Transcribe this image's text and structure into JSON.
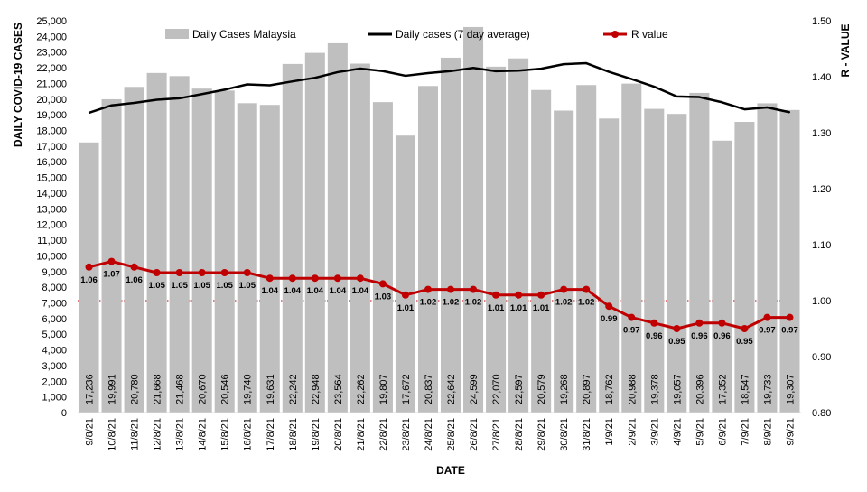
{
  "chart_data": {
    "type": "bar",
    "title": "",
    "xlabel": "DATE",
    "ylabel": "DAILY COVID-19 CASES",
    "y2label": "R - VALUE",
    "ylim": [
      0,
      25000
    ],
    "y2lim": [
      0.8,
      1.5
    ],
    "y_ticks": [
      "0",
      "1,000",
      "2,000",
      "3,000",
      "4,000",
      "5,000",
      "6,000",
      "7,000",
      "8,000",
      "9,000",
      "10,000",
      "11,000",
      "12,000",
      "13,000",
      "14,000",
      "15,000",
      "16,000",
      "17,000",
      "18,000",
      "19,000",
      "20,000",
      "21,000",
      "22,000",
      "23,000",
      "24,000",
      "25,000"
    ],
    "y2_ticks": [
      "0.80",
      "0.90",
      "1.00",
      "1.10",
      "1.20",
      "1.30",
      "1.40",
      "1.50"
    ],
    "categories": [
      "9/8/21",
      "10/8/21",
      "11/8/21",
      "12/8/21",
      "13/8/21",
      "14/8/21",
      "15/8/21",
      "16/8/21",
      "17/8/21",
      "18/8/21",
      "19/8/21",
      "20/8/21",
      "21/8/21",
      "22/8/21",
      "23/8/21",
      "24/8/21",
      "25/8/21",
      "26/8/21",
      "27/8/21",
      "28/8/21",
      "29/8/21",
      "30/8/21",
      "31/8/21",
      "1/9/21",
      "2/9/21",
      "3/9/21",
      "4/9/21",
      "5/9/21",
      "6/9/21",
      "7/9/21",
      "8/9/21",
      "9/9/21"
    ],
    "series": [
      {
        "name": "Daily Cases Malaysia",
        "kind": "bar",
        "axis": "left",
        "color": "#bfbfbf",
        "values": [
          17236,
          19991,
          20780,
          21668,
          21468,
          20670,
          20546,
          19740,
          19631,
          22242,
          22948,
          23564,
          22262,
          19807,
          17672,
          20837,
          22642,
          24599,
          22070,
          22597,
          20579,
          19268,
          20897,
          18762,
          20988,
          19378,
          19057,
          20396,
          17352,
          18547,
          19733,
          19307
        ],
        "value_labels": [
          "17,236",
          "19,991",
          "20,780",
          "21,668",
          "21,468",
          "20,670",
          "20,546",
          "19,740",
          "19,631",
          "22,242",
          "22,948",
          "23,564",
          "22,262",
          "19,807",
          "17,672",
          "20,837",
          "22,642",
          "24,599",
          "22,070",
          "22,597",
          "20,579",
          "19,268",
          "20,897",
          "18,762",
          "20,988",
          "19,378",
          "19,057",
          "20,396",
          "17,352",
          "18,547",
          "19,733",
          "19,307"
        ]
      },
      {
        "name": "Daily cases (7 day average)",
        "kind": "line",
        "axis": "left",
        "color": "#000000",
        "values": [
          19130,
          19600,
          19760,
          19960,
          20050,
          20320,
          20600,
          20940,
          20880,
          21130,
          21360,
          21720,
          21950,
          21790,
          21490,
          21660,
          21790,
          21990,
          21780,
          21820,
          21940,
          22230,
          22290,
          21740,
          21280,
          20790,
          20170,
          20130,
          19800,
          19350,
          19470,
          19160
        ]
      },
      {
        "name": "R value",
        "kind": "line",
        "axis": "right",
        "color": "#c00000",
        "values": [
          1.06,
          1.07,
          1.06,
          1.05,
          1.05,
          1.05,
          1.05,
          1.05,
          1.04,
          1.04,
          1.04,
          1.04,
          1.04,
          1.03,
          1.01,
          1.02,
          1.02,
          1.02,
          1.01,
          1.01,
          1.01,
          1.02,
          1.02,
          0.99,
          0.97,
          0.96,
          0.95,
          0.96,
          0.96,
          0.95,
          0.97,
          0.97
        ],
        "value_labels": [
          "1.06",
          "1.07",
          "1.06",
          "1.05",
          "1.05",
          "1.05",
          "1.05",
          "1.05",
          "1.04",
          "1.04",
          "1.04",
          "1.04",
          "1.04",
          "1.03",
          "1.01",
          "1.02",
          "1.02",
          "1.02",
          "1.01",
          "1.01",
          "1.01",
          "1.02",
          "1.02",
          "0.99",
          "0.97",
          "0.96",
          "0.95",
          "0.96",
          "0.96",
          "0.95",
          "0.97",
          "0.97"
        ]
      }
    ],
    "reference_line": {
      "axis": "right",
      "value": 1.0,
      "color": "#c00000",
      "style": "dotted"
    },
    "legend": [
      "Daily Cases Malaysia",
      "Daily cases (7 day average)",
      "R value"
    ],
    "legend_position": "top",
    "grid": false
  }
}
